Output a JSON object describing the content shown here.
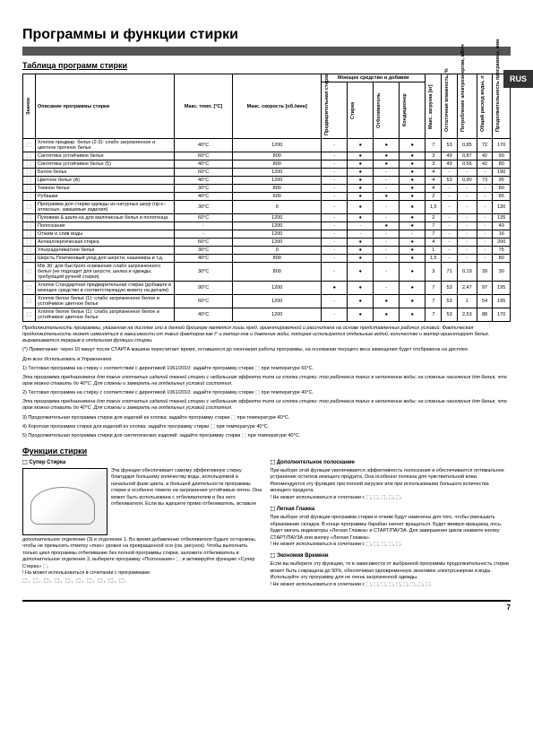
{
  "page": {
    "title": "Программы и функции стирки",
    "subtitle": "Таблица программ стирки",
    "rus_tab": "RUS",
    "pagenum": "7"
  },
  "table": {
    "group_header": "Моющее средство и добавки",
    "headers": {
      "icon": "Значок",
      "desc": "Описание программы стирки",
      "temp": "Макс. темп. [°C]",
      "speed": "Макс. скорость [об./мин]",
      "prewash": "Предварительная стирка",
      "wash": "Стирка",
      "bleach": "Отбеливатель",
      "softener": "Кондиционер",
      "load": "Макс. загрузка [кг]",
      "moisture": "Остаточная влажность, %",
      "energy": "Потребление электроэнергии, кВт/ч",
      "water": "Общий расход воды, л",
      "time": "Продолжительность программы, мин"
    },
    "rows": [
      {
        "desc": "Хлопок предвар. белье (2-3): слабо загрязненное и цветное прочное белье",
        "temp": "40°C",
        "speed": "1200",
        "pre": "-",
        "wash": "●",
        "bl": "●",
        "soft": "●",
        "load": "7",
        "m": "53",
        "e": "0,85",
        "w": "72",
        "t": "170"
      },
      {
        "desc": "Синтетика устойчивое белье",
        "temp": "60°C",
        "speed": "800",
        "pre": "-",
        "wash": "●",
        "bl": "●",
        "soft": "●",
        "load": "3",
        "m": "49",
        "e": "0,87",
        "w": "42",
        "t": "90"
      },
      {
        "desc": "Синтетика устойчивое белье (5)",
        "temp": "40°C",
        "speed": "800",
        "pre": "-",
        "wash": "●",
        "bl": "●",
        "soft": "●",
        "load": "3",
        "m": "49",
        "e": "0,56",
        "w": "42",
        "t": "80"
      },
      {
        "desc": "Белое белье",
        "temp": "60°C",
        "speed": "1200",
        "pre": "-",
        "wash": "●",
        "bl": "-",
        "soft": "●",
        "load": "4",
        "m": "-",
        "e": "-",
        "w": "-",
        "t": "190"
      },
      {
        "desc": "Цветное белье (А)",
        "temp": "40°C",
        "speed": "1200",
        "pre": "-",
        "wash": "●",
        "bl": "-",
        "soft": "●",
        "load": "4",
        "m": "53",
        "e": "0,90",
        "w": "73",
        "t": "95"
      },
      {
        "desc": "Темное белье",
        "temp": "30°C",
        "speed": "800",
        "pre": "-",
        "wash": "●",
        "bl": "-",
        "soft": "●",
        "load": "4",
        "m": "-",
        "e": "-",
        "w": "-",
        "t": "80"
      },
      {
        "desc": "Рубашки",
        "temp": "40°C",
        "speed": "600",
        "pre": "-",
        "wash": "●",
        "bl": "●",
        "soft": "●",
        "load": "2",
        "m": "-",
        "e": "-",
        "w": "-",
        "t": "85"
      },
      {
        "desc": "Программа для стирки одежды из натурных шкур (пр.е.: атласные, замшевые изделия)",
        "temp": "30°C",
        "speed": "0",
        "pre": "-",
        "wash": "●",
        "bl": "-",
        "soft": "●",
        "load": "1,5",
        "m": "-",
        "e": "-",
        "w": "-",
        "t": "130"
      },
      {
        "desc": "Пуховики & шале-ка для малочисных белья и полотенца",
        "temp": "60°C",
        "speed": "1200",
        "pre": "-",
        "wash": "●",
        "bl": "-",
        "soft": "●",
        "load": "2",
        "m": "-",
        "e": "-",
        "w": "-",
        "t": "135"
      },
      {
        "desc": "Полоскание",
        "temp": "-",
        "speed": "1200",
        "pre": "-",
        "wash": "-",
        "bl": "●",
        "soft": "●",
        "load": "7",
        "m": "-",
        "e": "-",
        "w": "-",
        "t": "49"
      },
      {
        "desc": "Отжим и слив воды",
        "temp": "-",
        "speed": "1200",
        "pre": "-",
        "wash": "-",
        "bl": "-",
        "soft": "-",
        "load": "7",
        "m": "-",
        "e": "-",
        "w": "-",
        "t": "16"
      },
      {
        "desc": "Антиаллергическая стирка",
        "temp": "60°C",
        "speed": "1200",
        "pre": "-",
        "wash": "●",
        "bl": "-",
        "soft": "●",
        "load": "4",
        "m": "-",
        "e": "-",
        "w": "-",
        "t": "200"
      },
      {
        "desc": "Ультраделикатное белье",
        "temp": "30°C",
        "speed": "0",
        "pre": "-",
        "wash": "●",
        "bl": "-",
        "soft": "●",
        "load": "1",
        "m": "-",
        "e": "-",
        "w": "-",
        "t": "75"
      },
      {
        "desc": "Шерсть Платиновый уход для шерсти, кашемира и т.д.",
        "temp": "40°C",
        "speed": "800",
        "pre": "-",
        "wash": "●",
        "bl": "-",
        "soft": "●",
        "load": "1,5",
        "m": "-",
        "e": "-",
        "w": "-",
        "t": "80"
      },
      {
        "desc": "Mix 30: для быстрого освежения слабо загрязненного белья (не подходит для шерсти, шелка и одежды, требующей ручной стирки)",
        "temp": "30°C",
        "speed": "800",
        "pre": "-",
        "wash": "●",
        "bl": "-",
        "soft": "●",
        "load": "3",
        "m": "71",
        "e": "0,19",
        "w": "39",
        "t": "30"
      },
      {
        "desc": "Хлопок Стандартная предварительная стирка (добавьте в моющее средство в соответствующую кювету на детали)",
        "temp": "90°C",
        "speed": "1200",
        "pre": "●",
        "wash": "●",
        "bl": "-",
        "soft": "●",
        "load": "7",
        "m": "53",
        "e": "2,47",
        "w": "97",
        "t": "195"
      },
      {
        "desc": "Хлопок белое белье (1): слабо загрязненное белое и устойчивое цветное белье",
        "temp": "60°C",
        "speed": "1200",
        "pre": "-",
        "wash": "●",
        "bl": "●",
        "soft": "●",
        "load": "7",
        "m": "53",
        "e": "1",
        "w": "54",
        "t": "195"
      },
      {
        "desc": "Хлопок белое белье (1): слабо загрязненное белое и устойчивое цветное белье",
        "temp": "40°C",
        "speed": "1200",
        "pre": "-",
        "wash": "●",
        "bl": "●",
        "soft": "●",
        "load": "7",
        "m": "53",
        "e": "2,53",
        "w": "88",
        "t": "170"
      }
    ]
  },
  "notes": {
    "intro": "Продолжительность программы, указанная на дисплее или в данной брошюре является лишь пред. ориентировочной и рассчитана на основе представленных рабочих условий. Фактическая продолжительность может изменяться в зависимости от таких факторов как t° и матер-лов и давление воды, которая используется отдельные водой, количество и матер-ориентирует белья, выравнивается перерыв в отдельном функции стирки.",
    "items": [
      "(*) Примечание: через 10 минут после СТАРТА машина пересчитает время, оставшееся до окончания работы программы, на основании текущего веса замещения будет отображена на дисплее.",
      "Для всех Использовать в Упражнениях"
    ],
    "numbered": [
      "1) Тестовая программа на стирку с соответствии с директивой 1061/2010: задайте программу стирки ⬚ при температуре 60°C.",
      "2) Тестовая программа на стирку с соответствии с директивой 1061/2010: задайте программу стирки ⬚ при температуре 40°C.",
      "3) Продолжительная программа стирки для изделий из хлопка: задайте программу стирки ⬚ при температуре 40°C.",
      "4) Короткая программа стирки для изделий из хлопка: задайте программу стирки ⬚ при температуре 40°C.",
      "5) Продолжительная программа стирки для синтетических изделий: задайте программу стирки ⬚ при температуре 40°C."
    ],
    "note_sub": "Эта программа предназначена для таких хлопчатых изделий тканей стирки с небольшим эффекта типа из хлопка стирки: тоо рабочееса таких в неполнение воды; на сложные населения для белья, что орок можно ставить до 40°C. Для сложны и замереть на отдельных условий состояния."
  },
  "functions": {
    "title": "Функции стирки",
    "super": {
      "name": "⬚ Супер Стирка",
      "text": "Эта функция обеспечивает самому эффективную стирку благодаря большему количеству воды, используемой в начальной фазе цикла, и большей длительности программы стирки и особенно тяжело на загрязнения устойчивых пятен. Она может быть использована с отбеливателем и без него отбеливателя. Если вы ждешете прямо отбеливатель, вставьте",
      "text2": "дополнительное отделение (3) в отделение 1. Во время добавление отбеливателя будьте осторожны, чтобы не превысить отметку «max» уровня на превращенной оси (см. рисунок). Чтобы выполнить только цикл программы отбеливание без полной программы стирки, заложите отбеливатель в дополнительное отделение 3, выберите программу «Полоскание» ⬚ и активируйте функцию «Супер Стирка» ⬚.",
      "incompat": "! На может использоваться в сочетании с программами",
      "symbols": "⬚, ⬚, ⬚, ⬚, ⬚, ⬚, ⬚, ⬚, ⬚, ⬚."
    },
    "extra_rinse": {
      "name": "⬚ Дополнительное полоскание",
      "text": "При выборе этой функции увеличивается эффективность полоскания и обеспечивается оптимальное устранение остатков моющего продукта. Она особенно полезна для чувствительной кожи. Рекомендуется эту функцию при полной загрузке или при использовании большого количества моющего продукта.",
      "incompat": "! Не может использоваться в сочетании с ⬚, ⬚, ⬚, ⬚, ⬚."
    },
    "easy_iron": {
      "name": "⬚ Легкая Глажка",
      "text": "При выборе этой функции программа стирки и отжим будут изменены для того, чтобы уменьшить образование складок. В конце программы барабан начнет вращаться. Будет вживую вращающ лось: будет мигать индикаторы «Легкая Глажка» и СТАРТ/ПАУЗА. Для завершения цикла нажмите кнопку СТАРТ/ПАУЗА или кнопку «Легкая Глажка».",
      "incompat": "! Не может использоваться в сочетании с ⬚, ⬚, ⬚, ⬚, ⬚."
    },
    "time_save": {
      "name": "⬚ Экономия Времени",
      "text": "Если вы выберите эту функцию, то в зависимости от выбранной программы продолжительность стирки может быть сокращена до 50%, обеспечивая одновременную экономию электроэнергии и воды. Используйте эту программу для не очень загрязненной одежды.",
      "incompat": "! Не может использоваться в сочетании с ⬚, ⬚, ⬚, ⬚, ⬚, ⬚, ⬚, ⬚, ⬚."
    }
  }
}
